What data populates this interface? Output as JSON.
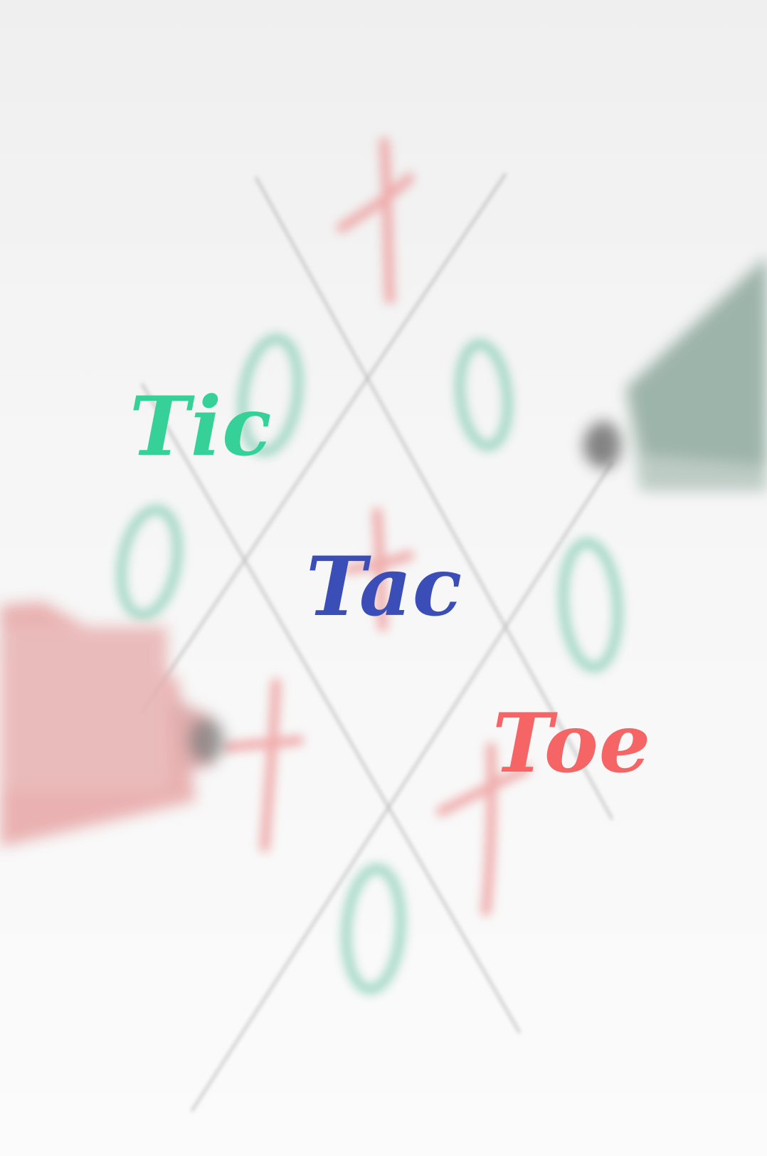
{
  "title": {
    "words": [
      {
        "text": "Tic",
        "color": "#36d198"
      },
      {
        "text": "Tac",
        "color": "#3b4eb8"
      },
      {
        "text": "Toe",
        "color": "#f56565"
      }
    ]
  },
  "background": {
    "description_colors": {
      "grid_line": "#8a8a8a",
      "o_mark": "#7fcab0",
      "x_mark": "#ee9a9a",
      "green_marker": "#8ea99e",
      "red_marker": "#e7a5a5"
    },
    "icons": [
      "grid-lines",
      "o-mark",
      "x-mark",
      "green-marker",
      "red-marker"
    ]
  }
}
